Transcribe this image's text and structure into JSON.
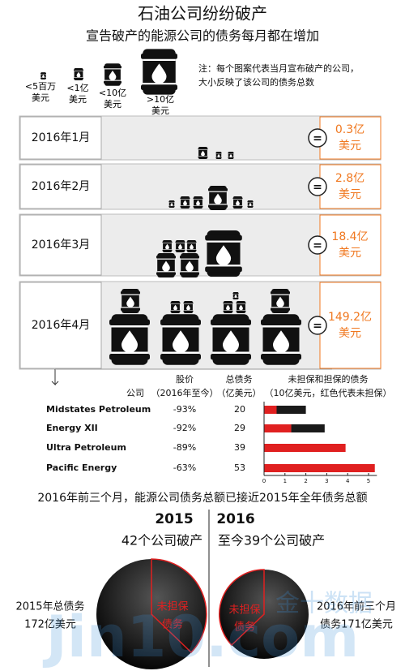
{
  "header": {
    "title": "石油公司纷纷破产",
    "subtitle": "宣告破产的能源公司的债务每月都在增加"
  },
  "legend": {
    "items": [
      "<5百万美元",
      "<1亿美元",
      "<10亿美元",
      ">10亿美元"
    ],
    "note": [
      "注：每个图案代表当月宣布破产的公司，",
      "大小反映了该公司的债务总数"
    ]
  },
  "months": [
    {
      "label": "2016年1月",
      "value": "0.3亿",
      "unit": "美元"
    },
    {
      "label": "2016年2月",
      "value": "2.8亿",
      "unit": "美元"
    },
    {
      "label": "2016年3月",
      "value": "18.4亿",
      "unit": "美元"
    },
    {
      "label": "2016年4月",
      "value": "149.2亿",
      "unit": "美元"
    }
  ],
  "table": {
    "headers": [
      [
        "公司"
      ],
      [
        "股价",
        "（2016年至今）"
      ],
      [
        "总债务",
        "（亿美元）"
      ],
      [
        "未担保和担保的债务",
        "（10亿美元，红色代表未担保）"
      ]
    ],
    "rows": [
      {
        "stock": "-93%",
        "debt": "20"
      },
      {
        "stock": "-92%",
        "debt": "29"
      },
      {
        "stock": "-89%",
        "debt": "39"
      },
      {
        "stock": "-63%",
        "debt": "53"
      }
    ]
  },
  "chart_data": {
    "type": "bar",
    "orientation": "horizontal",
    "stacked": true,
    "categories": [
      "Midstates Petroleum",
      "Energy XII",
      "Ultra Petroleum",
      "Pacific Energy"
    ],
    "series": [
      {
        "color": "#e02020",
        "values": [
          0.6,
          1.3,
          3.9,
          5.3
        ]
      },
      {
        "color": "#1a1a1a",
        "values": [
          1.4,
          1.6,
          0,
          0
        ]
      }
    ],
    "xlim": [
      0,
      5.4
    ],
    "xticks": [
      0,
      1,
      2,
      3,
      4,
      5
    ]
  },
  "summary": {
    "sentence": "2016年前三个月，能源公司债务总额已接近2015年全年债务总额",
    "left": {
      "year": "2015",
      "count": "42个公司破产",
      "debt": [
        "2015年总债务",
        "172亿美元"
      ],
      "wedge": [
        "未担保",
        "债务"
      ]
    },
    "right": {
      "year": "2016",
      "count": "至今39个公司破产",
      "debt": [
        "2016年前三个月",
        "债务171亿美元"
      ],
      "wedge": [
        "未担保",
        "债务"
      ]
    }
  },
  "watermark": {
    "latin": "Jin10.com",
    "chinese": "金十数据"
  }
}
